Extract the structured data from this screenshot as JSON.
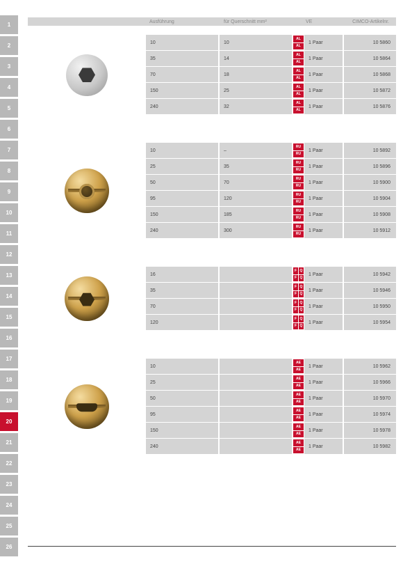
{
  "header": {
    "col_ausfuehrung": "Ausführung",
    "col_querschnitt": "für Querschnitt mm²",
    "col_ve": "VE",
    "col_artikel": "CIMCO-Artikelnr."
  },
  "tabs": {
    "count": 26,
    "active": 20
  },
  "sections": [
    {
      "id": "alu-hex",
      "thumb": "hex-metal",
      "badge_type": "double",
      "rows": [
        {
          "a": "10",
          "q": "10",
          "badges": [
            "AL",
            "AL"
          ],
          "ve": "1 Paar",
          "art": "10 5860"
        },
        {
          "a": "35",
          "q": "14",
          "badges": [
            "AL",
            "AL"
          ],
          "ve": "1 Paar",
          "art": "10 5864"
        },
        {
          "a": "70",
          "q": "18",
          "badges": [
            "AL",
            "AL"
          ],
          "ve": "1 Paar",
          "art": "10 5868"
        },
        {
          "a": "150",
          "q": "25",
          "badges": [
            "AL",
            "AL"
          ],
          "ve": "1 Paar",
          "art": "10 5872"
        },
        {
          "a": "240",
          "q": "32",
          "badges": [
            "AL",
            "AL"
          ],
          "ve": "1 Paar",
          "art": "10 5876"
        }
      ]
    },
    {
      "id": "brass-round",
      "thumb": "brass-round",
      "badge_type": "double",
      "rows": [
        {
          "a": "10",
          "q": "–",
          "badges": [
            "RU",
            "RU"
          ],
          "ve": "1 Paar",
          "art": "10 5892"
        },
        {
          "a": "25",
          "q": "35",
          "badges": [
            "RU",
            "RU"
          ],
          "ve": "1 Paar",
          "art": "10 5896"
        },
        {
          "a": "50",
          "q": "70",
          "badges": [
            "RU",
            "RU"
          ],
          "ve": "1 Paar",
          "art": "10 5900"
        },
        {
          "a": "95",
          "q": "120",
          "badges": [
            "RU",
            "RU"
          ],
          "ve": "1 Paar",
          "art": "10 5904"
        },
        {
          "a": "150",
          "q": "185",
          "badges": [
            "RU",
            "RU"
          ],
          "ve": "1 Paar",
          "art": "10 5908"
        },
        {
          "a": "240",
          "q": "300",
          "badges": [
            "RU",
            "RU"
          ],
          "ve": "1 Paar",
          "art": "10 5912"
        }
      ]
    },
    {
      "id": "brass-hex",
      "thumb": "brass-hex",
      "badge_type": "quad",
      "rows": [
        {
          "a": "16",
          "q": "",
          "badges": [
            "F",
            "Q",
            "F",
            "Q"
          ],
          "ve": "1 Paar",
          "art": "10 5942"
        },
        {
          "a": "35",
          "q": "",
          "badges": [
            "F",
            "Q",
            "F",
            "Q"
          ],
          "ve": "1 Paar",
          "art": "10 5946"
        },
        {
          "a": "70",
          "q": "",
          "badges": [
            "F",
            "Q",
            "F",
            "Q"
          ],
          "ve": "1 Paar",
          "art": "10 5950"
        },
        {
          "a": "120",
          "q": "",
          "badges": [
            "F",
            "Q",
            "F",
            "Q"
          ],
          "ve": "1 Paar",
          "art": "10 5954"
        }
      ]
    },
    {
      "id": "brass-slot",
      "thumb": "brass-slot",
      "badge_type": "double",
      "rows": [
        {
          "a": "10",
          "q": "",
          "badges": [
            "AE",
            "AE"
          ],
          "ve": "1 Paar",
          "art": "10 5962"
        },
        {
          "a": "25",
          "q": "",
          "badges": [
            "AE",
            "AE"
          ],
          "ve": "1 Paar",
          "art": "10 5966"
        },
        {
          "a": "50",
          "q": "",
          "badges": [
            "AE",
            "AE"
          ],
          "ve": "1 Paar",
          "art": "10 5970"
        },
        {
          "a": "95",
          "q": "",
          "badges": [
            "AE",
            "AE"
          ],
          "ve": "1 Paar",
          "art": "10 5974"
        },
        {
          "a": "150",
          "q": "",
          "badges": [
            "AE",
            "AE"
          ],
          "ve": "1 Paar",
          "art": "10 5978"
        },
        {
          "a": "240",
          "q": "",
          "badges": [
            "AE",
            "AE"
          ],
          "ve": "1 Paar",
          "art": "10 5982"
        }
      ]
    }
  ]
}
